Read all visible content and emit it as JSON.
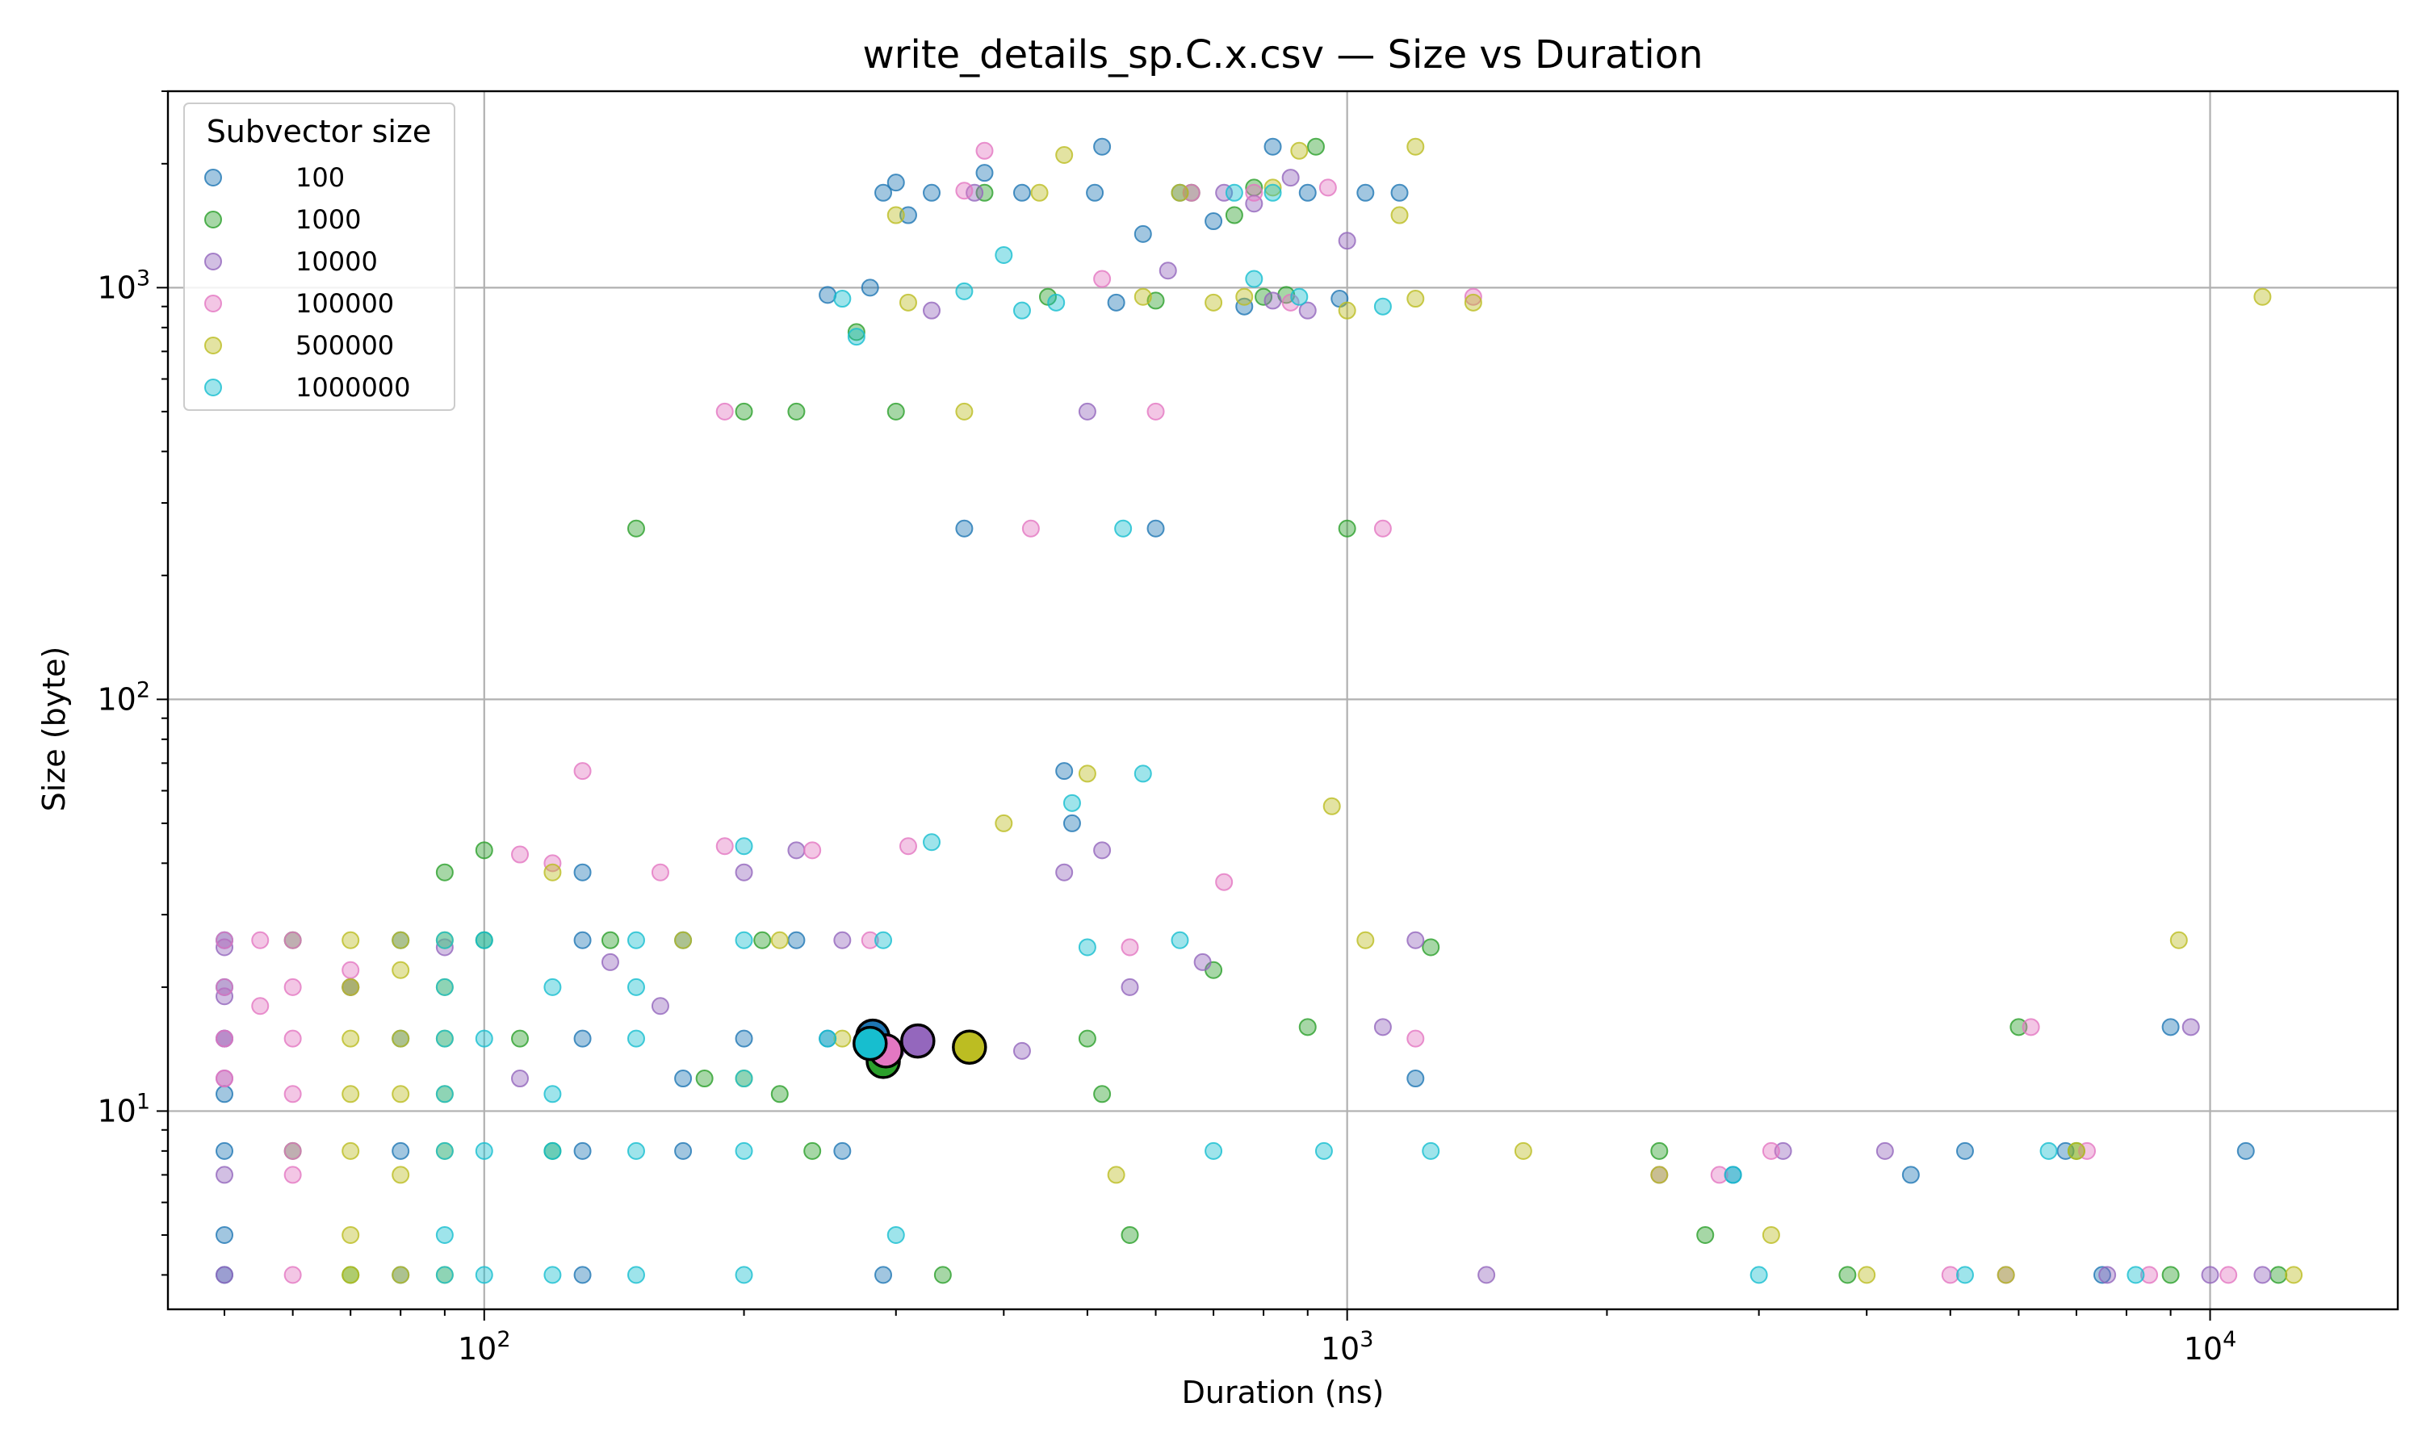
{
  "chart_data": {
    "type": "scatter",
    "title": "write_details_sp.C.x.csv — Size vs Duration",
    "xlabel": "Duration (ns)",
    "ylabel": "Size (byte)",
    "xscale": "log",
    "yscale": "log",
    "xlim": [
      43,
      16500
    ],
    "ylim": [
      3.3,
      3000
    ],
    "grid": true,
    "x_major_ticks": [
      {
        "base": "10",
        "exp": "2",
        "value": 100
      },
      {
        "base": "10",
        "exp": "3",
        "value": 1000
      },
      {
        "base": "10",
        "exp": "4",
        "value": 10000
      }
    ],
    "y_major_ticks": [
      {
        "base": "10",
        "exp": "1",
        "value": 10
      },
      {
        "base": "10",
        "exp": "2",
        "value": 100
      },
      {
        "base": "10",
        "exp": "3",
        "value": 1000
      }
    ],
    "legend": {
      "title": "Subvector size",
      "position": "top-left"
    },
    "series": [
      {
        "name": "100",
        "color": "#1f77b4",
        "points": [
          [
            50,
            26
          ],
          [
            50,
            20
          ],
          [
            50,
            15
          ],
          [
            50,
            11
          ],
          [
            50,
            8
          ],
          [
            50,
            5
          ],
          [
            50,
            4
          ],
          [
            80,
            26
          ],
          [
            80,
            15
          ],
          [
            80,
            8
          ],
          [
            80,
            4
          ],
          [
            130,
            38
          ],
          [
            130,
            26
          ],
          [
            130,
            15
          ],
          [
            130,
            8
          ],
          [
            130,
            4
          ],
          [
            170,
            26
          ],
          [
            170,
            12
          ],
          [
            170,
            8
          ],
          [
            200,
            15
          ],
          [
            230,
            26
          ],
          [
            250,
            15
          ],
          [
            260,
            8
          ],
          [
            290,
            4
          ],
          [
            250,
            960
          ],
          [
            280,
            1000
          ],
          [
            290,
            1700
          ],
          [
            300,
            1800
          ],
          [
            310,
            1500
          ],
          [
            330,
            1700
          ],
          [
            360,
            260
          ],
          [
            380,
            1900
          ],
          [
            420,
            1700
          ],
          [
            470,
            67
          ],
          [
            480,
            50
          ],
          [
            510,
            1700
          ],
          [
            520,
            2200
          ],
          [
            540,
            920
          ],
          [
            580,
            1350
          ],
          [
            600,
            260
          ],
          [
            640,
            1700
          ],
          [
            700,
            1450
          ],
          [
            760,
            900
          ],
          [
            820,
            2200
          ],
          [
            900,
            1700
          ],
          [
            980,
            940
          ],
          [
            1050,
            1700
          ],
          [
            1150,
            1700
          ],
          [
            1200,
            12
          ],
          [
            2800,
            7
          ],
          [
            4500,
            7
          ],
          [
            5200,
            8
          ],
          [
            6800,
            8
          ],
          [
            7500,
            4
          ],
          [
            9000,
            16
          ],
          [
            11000,
            8
          ]
        ]
      },
      {
        "name": "1000",
        "color": "#2ca02c",
        "points": [
          [
            60,
            26
          ],
          [
            60,
            8
          ],
          [
            70,
            20
          ],
          [
            70,
            4
          ],
          [
            90,
            38
          ],
          [
            100,
            43
          ],
          [
            100,
            26
          ],
          [
            110,
            15
          ],
          [
            120,
            8
          ],
          [
            140,
            26
          ],
          [
            150,
            260
          ],
          [
            180,
            12
          ],
          [
            200,
            500
          ],
          [
            210,
            26
          ],
          [
            220,
            11
          ],
          [
            230,
            500
          ],
          [
            240,
            8
          ],
          [
            270,
            780
          ],
          [
            300,
            500
          ],
          [
            340,
            4
          ],
          [
            380,
            1700
          ],
          [
            450,
            950
          ],
          [
            500,
            15
          ],
          [
            520,
            11
          ],
          [
            560,
            5
          ],
          [
            600,
            930
          ],
          [
            660,
            1700
          ],
          [
            700,
            22
          ],
          [
            740,
            1500
          ],
          [
            780,
            1750
          ],
          [
            800,
            950
          ],
          [
            850,
            960
          ],
          [
            900,
            16
          ],
          [
            920,
            2200
          ],
          [
            1000,
            260
          ],
          [
            1250,
            25
          ],
          [
            2300,
            8
          ],
          [
            2600,
            5
          ],
          [
            3800,
            4
          ],
          [
            6000,
            16
          ],
          [
            7000,
            8
          ],
          [
            9000,
            4
          ],
          [
            12000,
            4
          ]
        ]
      },
      {
        "name": "10000",
        "color": "#9467bd",
        "points": [
          [
            50,
            25
          ],
          [
            50,
            19
          ],
          [
            50,
            15
          ],
          [
            50,
            12
          ],
          [
            50,
            7
          ],
          [
            50,
            4
          ],
          [
            70,
            20
          ],
          [
            90,
            25
          ],
          [
            110,
            12
          ],
          [
            140,
            23
          ],
          [
            160,
            18
          ],
          [
            200,
            38
          ],
          [
            230,
            43
          ],
          [
            260,
            26
          ],
          [
            300,
            14
          ],
          [
            320,
            15
          ],
          [
            330,
            880
          ],
          [
            370,
            1700
          ],
          [
            420,
            14
          ],
          [
            470,
            38
          ],
          [
            500,
            500
          ],
          [
            520,
            43
          ],
          [
            560,
            20
          ],
          [
            620,
            1100
          ],
          [
            680,
            23
          ],
          [
            720,
            1700
          ],
          [
            780,
            1600
          ],
          [
            820,
            930
          ],
          [
            860,
            1850
          ],
          [
            900,
            880
          ],
          [
            1000,
            1300
          ],
          [
            1100,
            16
          ],
          [
            1200,
            26
          ],
          [
            1450,
            4
          ],
          [
            2300,
            7
          ],
          [
            3200,
            8
          ],
          [
            4200,
            8
          ],
          [
            5800,
            4
          ],
          [
            7600,
            4
          ],
          [
            9500,
            16
          ],
          [
            10000,
            4
          ],
          [
            11500,
            4
          ]
        ]
      },
      {
        "name": "100000",
        "color": "#e377c2",
        "points": [
          [
            50,
            26
          ],
          [
            50,
            20
          ],
          [
            50,
            15
          ],
          [
            50,
            12
          ],
          [
            55,
            26
          ],
          [
            55,
            18
          ],
          [
            60,
            26
          ],
          [
            60,
            20
          ],
          [
            60,
            15
          ],
          [
            60,
            11
          ],
          [
            60,
            8
          ],
          [
            60,
            7
          ],
          [
            60,
            4
          ],
          [
            70,
            22
          ],
          [
            110,
            42
          ],
          [
            120,
            40
          ],
          [
            130,
            67
          ],
          [
            160,
            38
          ],
          [
            190,
            500
          ],
          [
            190,
            44
          ],
          [
            240,
            43
          ],
          [
            280,
            26
          ],
          [
            310,
            44
          ],
          [
            360,
            1720
          ],
          [
            380,
            2150
          ],
          [
            430,
            260
          ],
          [
            520,
            1050
          ],
          [
            560,
            25
          ],
          [
            600,
            500
          ],
          [
            660,
            1700
          ],
          [
            720,
            36
          ],
          [
            780,
            1700
          ],
          [
            860,
            920
          ],
          [
            950,
            1750
          ],
          [
            1100,
            260
          ],
          [
            1200,
            15
          ],
          [
            1400,
            950
          ],
          [
            2700,
            7
          ],
          [
            3100,
            8
          ],
          [
            5000,
            4
          ],
          [
            6200,
            16
          ],
          [
            7200,
            8
          ],
          [
            8500,
            4
          ],
          [
            10500,
            4
          ]
        ]
      },
      {
        "name": "500000",
        "color": "#bcbd22",
        "points": [
          [
            70,
            26
          ],
          [
            70,
            20
          ],
          [
            70,
            15
          ],
          [
            70,
            11
          ],
          [
            70,
            8
          ],
          [
            70,
            5
          ],
          [
            70,
            4
          ],
          [
            80,
            26
          ],
          [
            80,
            22
          ],
          [
            80,
            15
          ],
          [
            80,
            11
          ],
          [
            80,
            7
          ],
          [
            80,
            4
          ],
          [
            90,
            26
          ],
          [
            90,
            20
          ],
          [
            90,
            15
          ],
          [
            90,
            11
          ],
          [
            90,
            8
          ],
          [
            90,
            4
          ],
          [
            120,
            38
          ],
          [
            170,
            26
          ],
          [
            200,
            12
          ],
          [
            220,
            26
          ],
          [
            260,
            15
          ],
          [
            300,
            1500
          ],
          [
            310,
            920
          ],
          [
            360,
            500
          ],
          [
            400,
            50
          ],
          [
            440,
            1700
          ],
          [
            470,
            2100
          ],
          [
            500,
            66
          ],
          [
            540,
            7
          ],
          [
            580,
            950
          ],
          [
            640,
            1700
          ],
          [
            700,
            920
          ],
          [
            760,
            950
          ],
          [
            820,
            1750
          ],
          [
            880,
            2150
          ],
          [
            960,
            55
          ],
          [
            1000,
            880
          ],
          [
            1050,
            26
          ],
          [
            1150,
            1500
          ],
          [
            1200,
            940
          ],
          [
            1400,
            920
          ],
          [
            1200,
            2200
          ],
          [
            1600,
            8
          ],
          [
            2300,
            7
          ],
          [
            3100,
            5
          ],
          [
            4000,
            4
          ],
          [
            5800,
            4
          ],
          [
            7000,
            8
          ],
          [
            9200,
            26
          ],
          [
            11500,
            950
          ],
          [
            12500,
            4
          ]
        ]
      },
      {
        "name": "1000000",
        "color": "#17becf",
        "points": [
          [
            90,
            26
          ],
          [
            90,
            20
          ],
          [
            90,
            15
          ],
          [
            90,
            11
          ],
          [
            90,
            8
          ],
          [
            90,
            5
          ],
          [
            90,
            4
          ],
          [
            100,
            26
          ],
          [
            100,
            15
          ],
          [
            100,
            8
          ],
          [
            100,
            4
          ],
          [
            120,
            20
          ],
          [
            120,
            11
          ],
          [
            120,
            8
          ],
          [
            120,
            4
          ],
          [
            150,
            26
          ],
          [
            150,
            20
          ],
          [
            150,
            15
          ],
          [
            150,
            8
          ],
          [
            150,
            4
          ],
          [
            200,
            44
          ],
          [
            200,
            26
          ],
          [
            200,
            12
          ],
          [
            200,
            8
          ],
          [
            200,
            4
          ],
          [
            250,
            15
          ],
          [
            260,
            940
          ],
          [
            270,
            760
          ],
          [
            290,
            26
          ],
          [
            300,
            5
          ],
          [
            330,
            45
          ],
          [
            360,
            980
          ],
          [
            400,
            1200
          ],
          [
            420,
            880
          ],
          [
            460,
            920
          ],
          [
            480,
            56
          ],
          [
            500,
            25
          ],
          [
            550,
            260
          ],
          [
            580,
            66
          ],
          [
            640,
            26
          ],
          [
            700,
            8
          ],
          [
            740,
            1700
          ],
          [
            780,
            1050
          ],
          [
            820,
            1700
          ],
          [
            880,
            950
          ],
          [
            940,
            8
          ],
          [
            1100,
            900
          ],
          [
            1250,
            8
          ],
          [
            2800,
            7
          ],
          [
            3000,
            4
          ],
          [
            5200,
            4
          ],
          [
            6500,
            8
          ],
          [
            8200,
            4
          ]
        ]
      }
    ],
    "means": [
      {
        "series": "100",
        "color": "#1f77b4",
        "x": 282,
        "y": 15.2
      },
      {
        "series": "1000",
        "color": "#2ca02c",
        "x": 290,
        "y": 13.2
      },
      {
        "series": "10000",
        "color": "#9467bd",
        "x": 318,
        "y": 14.8
      },
      {
        "series": "100000",
        "color": "#e377c2",
        "x": 292,
        "y": 14.0
      },
      {
        "series": "500000",
        "color": "#bcbd22",
        "x": 365,
        "y": 14.3
      },
      {
        "series": "1000000",
        "color": "#17becf",
        "x": 280,
        "y": 14.6
      }
    ]
  }
}
